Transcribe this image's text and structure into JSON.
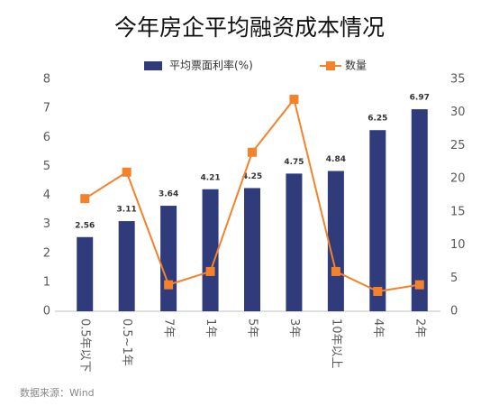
{
  "chart_data": {
    "type": "bar",
    "title": "今年房企平均融资成本情况",
    "categories": [
      "0.5年以下",
      "0.5~1年",
      "7年",
      "1年",
      "5年",
      "3年",
      "10年以上",
      "4年",
      "2年"
    ],
    "series": [
      {
        "name": "平均票面利率(%)",
        "color": "#2f3b7a",
        "values": [
          2.56,
          3.11,
          3.64,
          4.21,
          4.25,
          4.75,
          4.84,
          6.25,
          6.97
        ]
      },
      {
        "name": "数量",
        "color": "#f5822a",
        "type": "line",
        "axis": "y2",
        "values": [
          17,
          21,
          4,
          6,
          24,
          32,
          6,
          3,
          4
        ]
      }
    ],
    "ylim": [
      0,
      8
    ],
    "yticks": [
      0,
      1,
      2,
      3,
      4,
      5,
      6,
      7,
      8
    ],
    "y2lim": [
      0,
      35
    ],
    "y2ticks": [
      0,
      5,
      10,
      15,
      20,
      25,
      30,
      35
    ],
    "source": "数据来源：Wind"
  }
}
